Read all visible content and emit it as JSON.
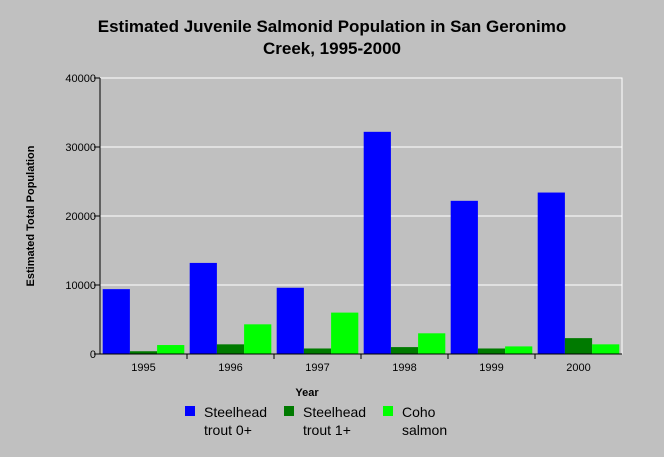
{
  "chart_data": {
    "type": "bar",
    "title": "Estimated Juvenile Salmonid Population in San Geronimo Creek, 1995-2000",
    "title_lines": [
      "Estimated Juvenile Salmonid Population in San Geronimo",
      "Creek, 1995-2000"
    ],
    "xlabel": "Year",
    "ylabel": "Estimated Total Population",
    "categories": [
      "1995",
      "1996",
      "1997",
      "1998",
      "1999",
      "2000"
    ],
    "ylim": [
      0,
      40000
    ],
    "yticks": [
      "0",
      "10000",
      "20000",
      "30000",
      "40000"
    ],
    "grid": true,
    "legend_position": "bottom",
    "series": [
      {
        "name": "Steelhead trout 0+",
        "legend_lines": "Steelhead\ntrout 0+",
        "color": "#0000ff",
        "values": [
          9400,
          13200,
          9600,
          32200,
          22200,
          23400
        ]
      },
      {
        "name": "Steelhead trout 1+",
        "legend_lines": "Steelhead\ntrout 1+",
        "color": "#007a00",
        "values": [
          400,
          1400,
          800,
          1000,
          800,
          2300
        ]
      },
      {
        "name": "Coho salmon",
        "legend_lines": "Coho\nsalmon",
        "color": "#00ff00",
        "values": [
          1300,
          4300,
          6000,
          3000,
          1100,
          1400
        ]
      }
    ]
  }
}
